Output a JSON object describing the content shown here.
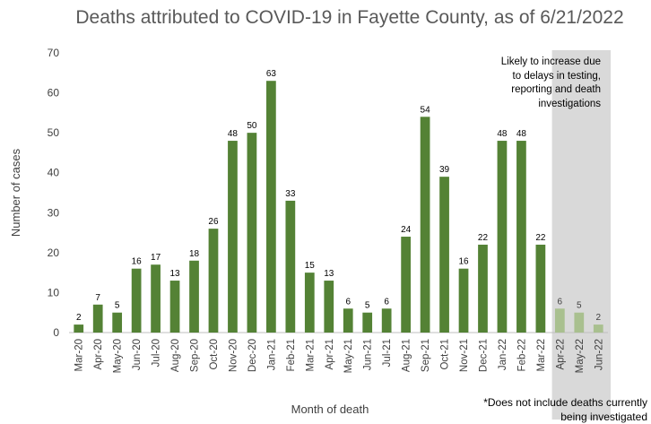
{
  "chart_data": {
    "type": "bar",
    "title": "Deaths attributed to COVID-19 in Fayette County, as of 6/21/2022",
    "xlabel": "Month of death",
    "ylabel": "Number of cases",
    "ylim": [
      0,
      70
    ],
    "yticks": [
      0,
      10,
      20,
      30,
      40,
      50,
      60,
      70
    ],
    "grid": false,
    "categories": [
      "Mar-20",
      "Apr-20",
      "May-20",
      "Jun-20",
      "Jul-20",
      "Aug-20",
      "Sep-20",
      "Oct-20",
      "Nov-20",
      "Dec-20",
      "Jan-21",
      "Feb-21",
      "Mar-21",
      "Apr-21",
      "May-21",
      "Jun-21",
      "Jul-21",
      "Aug-21",
      "Sep-21",
      "Oct-21",
      "Nov-21",
      "Dec-21",
      "Jan-22",
      "Feb-22",
      "Mar-22",
      "Apr-22",
      "May-22",
      "Jun-22"
    ],
    "values": [
      2,
      7,
      5,
      16,
      17,
      13,
      18,
      26,
      48,
      50,
      63,
      33,
      15,
      13,
      6,
      5,
      6,
      24,
      54,
      39,
      16,
      22,
      48,
      48,
      22,
      6,
      5,
      2
    ],
    "bar_color": "#548235",
    "provisional_bar_color": "#a9c08f",
    "provisional_categories": [
      "Apr-22",
      "May-22",
      "Jun-22"
    ],
    "shaded_region_color": "#d9d9d9",
    "annotation": [
      "Likely to increase due",
      "to delays in testing,",
      "reporting and death",
      "investigations"
    ],
    "footnote": [
      "*Does not include deaths currently",
      "being investigated"
    ]
  }
}
